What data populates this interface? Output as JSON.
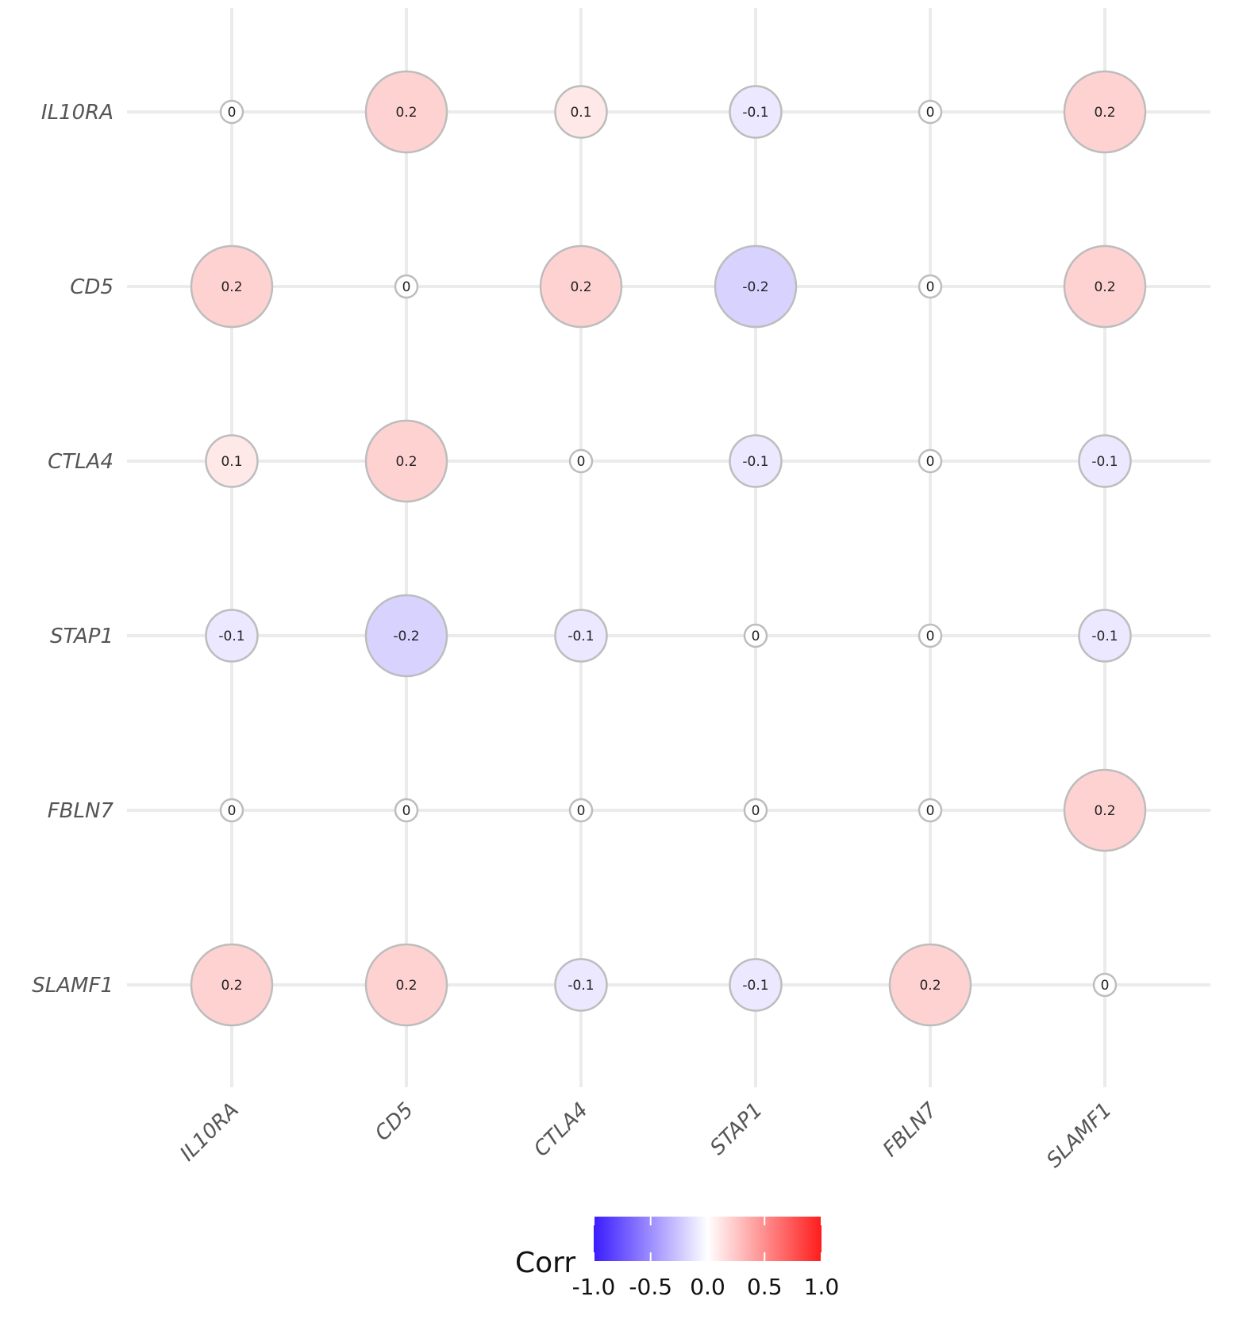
{
  "chart_data": {
    "type": "heatmap",
    "style": "circle-correlation-matrix",
    "rows": [
      "IL10RA",
      "CD5",
      "CTLA4",
      "STAP1",
      "FBLN7",
      "SLAMF1"
    ],
    "columns": [
      "IL10RA",
      "CD5",
      "CTLA4",
      "STAP1",
      "FBLN7",
      "SLAMF1"
    ],
    "values": [
      [
        0,
        0.2,
        0.1,
        -0.1,
        0,
        0.2
      ],
      [
        0.2,
        0,
        0.2,
        -0.2,
        0,
        0.2
      ],
      [
        0.1,
        0.2,
        0,
        -0.1,
        0,
        -0.1
      ],
      [
        -0.1,
        -0.2,
        -0.1,
        0,
        0,
        -0.1
      ],
      [
        0,
        0,
        0,
        0,
        0,
        0.2
      ],
      [
        0.2,
        0.2,
        -0.1,
        -0.1,
        0.2,
        0
      ]
    ],
    "labels": [
      [
        "0",
        "0.2",
        "0.1",
        "-0.1",
        "0",
        "0.2"
      ],
      [
        "0.2",
        "0",
        "0.2",
        "-0.2",
        "0",
        "0.2"
      ],
      [
        "0.1",
        "0.2",
        "0",
        "-0.1",
        "0",
        "-0.1"
      ],
      [
        "-0.1",
        "-0.2",
        "-0.1",
        "0",
        "0",
        "-0.1"
      ],
      [
        "0",
        "0",
        "0",
        "0",
        "0",
        "0.2"
      ],
      [
        "0.2",
        "0.2",
        "-0.1",
        "-0.1",
        "0.2",
        "0"
      ]
    ],
    "legend": {
      "title": "Corr",
      "placement": "bottom",
      "range": [
        -1,
        1
      ],
      "ticks": [
        "-1.0",
        "-0.5",
        "0.0",
        "0.5",
        "1.0"
      ],
      "colors": {
        "low": "#3A1CFF",
        "mid": "#FFFFFF",
        "high": "#FF1C1C"
      }
    },
    "grid": true,
    "colors": {
      "grid": "#EBEBEB",
      "circle_border": "#BDBDBD",
      "tick_text": "#555555"
    }
  }
}
